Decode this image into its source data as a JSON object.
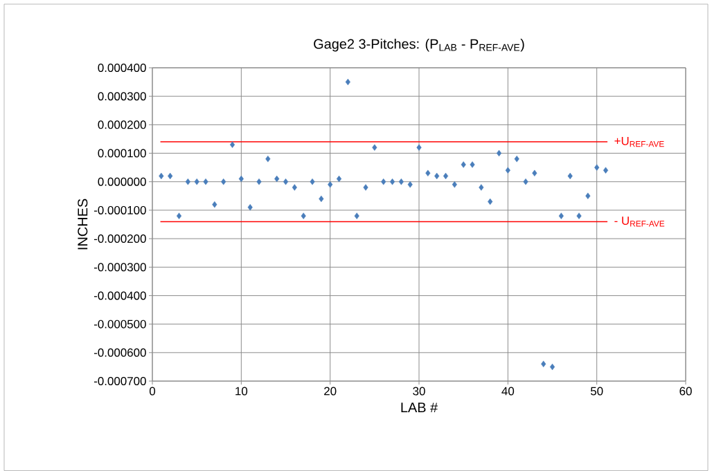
{
  "chart_data": {
    "type": "scatter",
    "title": "Gage2  3-Pitches:  (P$_{LAB}$ - P$_{REF-AVE}$)",
    "xlabel": "LAB #",
    "ylabel": "INCHES",
    "x": [
      1,
      2,
      3,
      4,
      5,
      6,
      7,
      8,
      9,
      10,
      11,
      12,
      13,
      14,
      15,
      16,
      17,
      18,
      19,
      20,
      21,
      22,
      23,
      24,
      25,
      26,
      27,
      28,
      29,
      30,
      31,
      32,
      33,
      34,
      35,
      36,
      37,
      38,
      39,
      40,
      41,
      42,
      43,
      44,
      45,
      46,
      47,
      48,
      49,
      50,
      51
    ],
    "values": [
      2e-05,
      2e-05,
      -0.00012,
      0,
      0,
      0,
      -8e-05,
      0,
      0.00013,
      1e-05,
      -9e-05,
      0,
      8e-05,
      1e-05,
      0,
      -2e-05,
      -0.00012,
      0,
      -6e-05,
      -1e-05,
      1e-05,
      0.00035,
      -0.00012,
      -2e-05,
      0.00012,
      0,
      0,
      0,
      -1e-05,
      0.00012,
      3e-05,
      2e-05,
      2e-05,
      -1e-05,
      6e-05,
      6e-05,
      -2e-05,
      -7e-05,
      0.0001,
      4e-05,
      8e-05,
      0,
      3e-05,
      -0.00064,
      -0.00065,
      -0.00012,
      2e-05,
      -0.00012,
      -5e-05,
      5e-05,
      4e-05
    ],
    "color": "#4a7ebb",
    "marker": "diamond",
    "grid": true,
    "legend": false,
    "xlim": [
      0,
      60
    ],
    "xticks": [
      0,
      10,
      20,
      30,
      40,
      50,
      60
    ],
    "ylim": [
      -0.0007,
      0.0004
    ],
    "yticks": [
      {
        "value": -0.0007,
        "label": "-0.000700"
      },
      {
        "value": -0.0006,
        "label": "-0.000600"
      },
      {
        "value": -0.0005,
        "label": "-0.000500"
      },
      {
        "value": -0.0004,
        "label": "-0.000400"
      },
      {
        "value": -0.0003,
        "label": "-0.000300"
      },
      {
        "value": -0.0002,
        "label": "-0.000200"
      },
      {
        "value": -0.0001,
        "label": "-0.000100"
      },
      {
        "value": 0,
        "label": "0.000000"
      },
      {
        "value": 0.0001,
        "label": "0.000100"
      },
      {
        "value": 0.0002,
        "label": "0.000200"
      },
      {
        "value": 0.0003,
        "label": "0.000300"
      },
      {
        "value": 0.0004,
        "label": "0.000400"
      }
    ],
    "ref_lines": [
      {
        "axis": "y",
        "value": 0.00014,
        "label": "+U$_{REF-AVE}$",
        "color": "#ff0000"
      },
      {
        "axis": "y",
        "value": -0.00014,
        "label": "- U$_{REF-AVE}$",
        "color": "#ff0000"
      }
    ]
  }
}
